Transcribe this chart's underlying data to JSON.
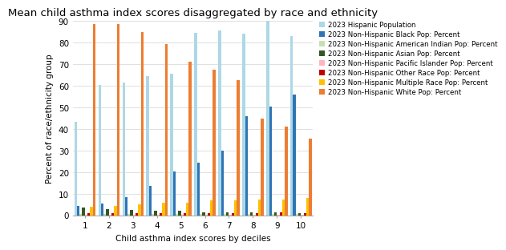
{
  "title": "Mean child asthma index scores disaggregated by race and ethnicity",
  "xlabel": "Child asthma index scores by deciles",
  "ylabel": "Percent of race/ethnicity group",
  "deciles": [
    1,
    2,
    3,
    4,
    5,
    6,
    7,
    8,
    9,
    10
  ],
  "series": [
    {
      "label": "2023 Hispanic Population",
      "color": "#add8e6",
      "values": [
        43.5,
        60.5,
        61.5,
        64.5,
        65.5,
        84.5,
        85.5,
        84.0,
        93.0,
        83.0
      ]
    },
    {
      "label": "2023 Non-Hispanic Black Pop: Percent",
      "color": "#2e75b6",
      "values": [
        4.5,
        5.5,
        8.5,
        13.5,
        20.5,
        24.5,
        30.0,
        46.0,
        50.5,
        56.0
      ]
    },
    {
      "label": "2023 Non-Hispanic American Indian Pop: Percent",
      "color": "#c6e0b4",
      "values": [
        0.8,
        0.8,
        0.8,
        0.8,
        0.8,
        0.8,
        0.8,
        0.8,
        0.8,
        0.8
      ]
    },
    {
      "label": "2023 Non-Hispanic Asian Pop: Percent",
      "color": "#375623",
      "values": [
        3.5,
        3.0,
        2.5,
        2.0,
        2.0,
        1.5,
        1.5,
        1.5,
        1.5,
        1.0
      ]
    },
    {
      "label": "2023 Non-Hispanic Pacific Islander Pop: Percent",
      "color": "#ffb6c1",
      "values": [
        0.4,
        0.4,
        0.4,
        0.4,
        0.4,
        0.4,
        0.4,
        0.4,
        0.4,
        0.4
      ]
    },
    {
      "label": "2023 Non-Hispanic Other Race Pop: Percent",
      "color": "#c00000",
      "values": [
        1.2,
        1.2,
        1.0,
        1.0,
        1.0,
        1.2,
        1.2,
        1.0,
        1.5,
        1.0
      ]
    },
    {
      "label": "2023 Non-Hispanic Multiple Race Pop: Percent",
      "color": "#ffc000",
      "values": [
        4.0,
        4.5,
        5.0,
        6.0,
        6.0,
        7.0,
        7.0,
        7.5,
        7.5,
        8.0
      ]
    },
    {
      "label": "2023 Non-Hispanic White Pop: Percent",
      "color": "#ed7d31",
      "values": [
        88.5,
        88.5,
        85.0,
        79.5,
        71.0,
        67.5,
        62.5,
        45.0,
        41.0,
        35.5
      ]
    }
  ],
  "ylim": [
    0,
    90
  ],
  "yticks": [
    0,
    10,
    20,
    30,
    40,
    50,
    60,
    70,
    80,
    90
  ],
  "background_color": "#ffffff",
  "grid_color": "#d3d3d3",
  "title_fontsize": 9.5,
  "axis_label_fontsize": 7.5,
  "tick_fontsize": 7.5,
  "legend_fontsize": 6.2
}
